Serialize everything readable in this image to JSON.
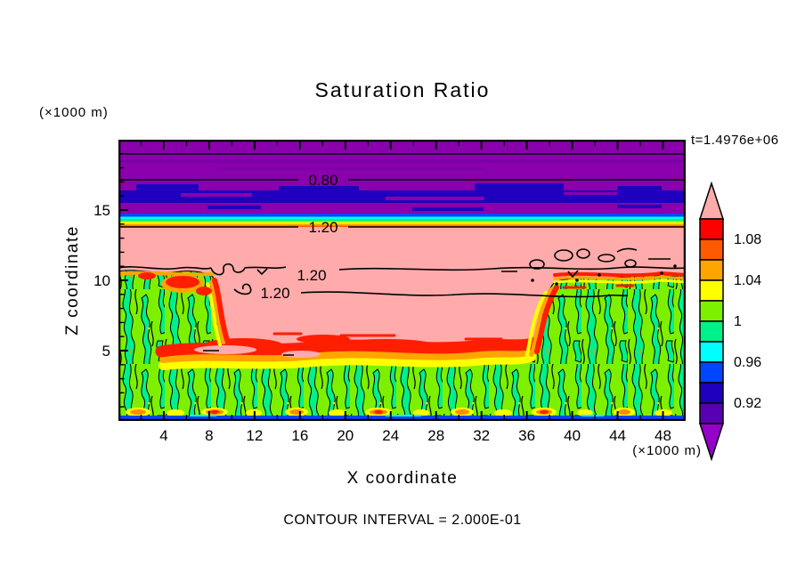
{
  "figure": {
    "title": "Saturation Ratio",
    "timestamp": "t=1.4976e+06",
    "footer": "CONTOUR INTERVAL = 2.000E-01"
  },
  "axes": {
    "x": {
      "label": "X coordinate",
      "unit": "(×1000 m)",
      "ticks": [
        "4",
        "8",
        "12",
        "16",
        "20",
        "24",
        "28",
        "32",
        "36",
        "40",
        "44",
        "48"
      ],
      "range": [
        0,
        50
      ]
    },
    "y": {
      "label": "Z coordinate",
      "unit": "(×1000 m)",
      "ticks": [
        "5",
        "10",
        "15"
      ],
      "range": [
        0,
        20
      ]
    }
  },
  "colorbar": {
    "labels": [
      "1.08",
      "1.04",
      "1",
      "0.96",
      "0.92"
    ],
    "segments": [
      "#FF0000",
      "#FF5A00",
      "#FFA500",
      "#FFFF00",
      "#7DF000",
      "#00F08C",
      "#00FFFF",
      "#0046FF",
      "#1E00BE",
      "#5A00B4"
    ],
    "arrow_top_color": "#FFABAB",
    "arrow_bottom_color": "#9600C8"
  },
  "contour_labels": {
    "c080": "0.80",
    "c120a": "1.20",
    "c120b": "1.20",
    "c120c": "1.20"
  },
  "chart_data": {
    "type": "heatmap",
    "subtype": "filled-contour",
    "title": "Saturation Ratio",
    "xlabel": "X coordinate",
    "ylabel": "Z coordinate",
    "axis_units": "×1000 m",
    "xlim": [
      0,
      50
    ],
    "ylim": [
      0,
      20
    ],
    "x_ticks": [
      4,
      8,
      12,
      16,
      20,
      24,
      28,
      32,
      36,
      40,
      44,
      48
    ],
    "y_ticks": [
      5,
      10,
      15
    ],
    "time": "1.4976e+06",
    "contour_interval": 0.2,
    "colorbar_level_boundaries": [
      0.9,
      0.92,
      0.94,
      0.96,
      0.98,
      1.0,
      1.02,
      1.04,
      1.06,
      1.08,
      1.1
    ],
    "colorbar_tick_values": [
      1.08,
      1.04,
      1,
      0.96,
      0.92
    ],
    "labeled_contours": [
      {
        "value": 0.8,
        "x": 18.0,
        "z": 17.1
      },
      {
        "value": 1.2,
        "x": 18.0,
        "z": 13.7
      },
      {
        "value": 1.2,
        "x": 17.0,
        "z": 10.3
      },
      {
        "value": 1.2,
        "x": 14.0,
        "z": 9.1
      }
    ],
    "vertical_profile_bands": [
      {
        "z_range": [
          17.1,
          20.0
        ],
        "saturation": "< 0.90",
        "color": "purple"
      },
      {
        "z_range": [
          15.5,
          15.9
        ],
        "saturation": "0.92-0.94",
        "color": "dark blue band"
      },
      {
        "z_range": [
          14.8,
          15.5
        ],
        "saturation": "< 0.90",
        "color": "purple"
      },
      {
        "z_range": [
          13.9,
          14.8
        ],
        "saturation": "0.94 to 1.10 thin rainbow gradient",
        "color": "blue,cyan,green,yellow,orange,red strips"
      },
      {
        "z_range": [
          9.0,
          13.9
        ],
        "saturation": "> 1.10",
        "color": "pink"
      },
      {
        "z_range": [
          0.3,
          10.3
        ],
        "saturation": "0.98-1.02 mottled, fringes up to >1.10",
        "color": "chartreuse/spring-green texture with red-orange fringes and pink pockets"
      },
      {
        "z_range": [
          0.0,
          0.3
        ],
        "saturation": "0.94-0.96",
        "color": "blue strip along bottom"
      }
    ],
    "regions": [
      {
        "name": "left green block",
        "x_range": [
          0,
          9
        ],
        "z_top": 10.3
      },
      {
        "name": "central green region",
        "x_range": [
          9,
          36
        ],
        "z_top": 4.5
      },
      {
        "name": "right green block",
        "x_range": [
          38,
          50
        ],
        "z_top": 10.0
      }
    ]
  }
}
